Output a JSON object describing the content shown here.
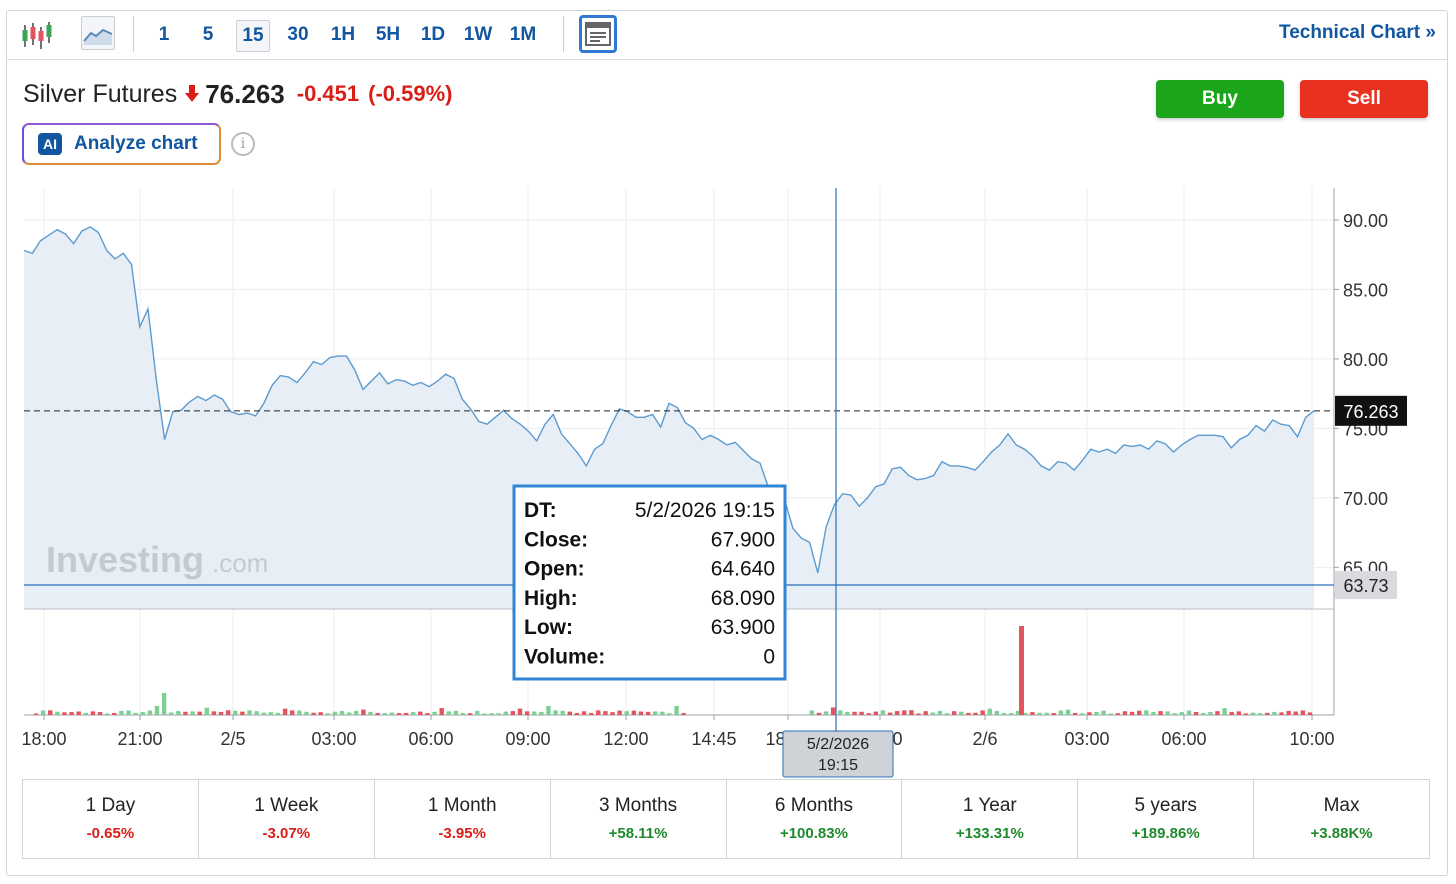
{
  "toolbar": {
    "icons": [
      "candlestick-icon",
      "area-chart-icon",
      "layout-icon"
    ],
    "timeframes": [
      "1",
      "5",
      "15",
      "30",
      "1H",
      "5H",
      "1D",
      "1W",
      "1M"
    ],
    "active_timeframe": "15",
    "technical_chart_label": "Technical Chart",
    "technical_chart_chevron": "»"
  },
  "header": {
    "instrument_name": "Silver Futures",
    "last_price": "76.263",
    "change": "-0.451",
    "change_percent": "(-0.59%)",
    "direction": "down"
  },
  "actions": {
    "ai_badge": "AI",
    "analyze_label": "Analyze chart",
    "info_glyph": "i",
    "buy_label": "Buy",
    "sell_label": "Sell"
  },
  "colors": {
    "accent": "#1256a0",
    "line": "#5b9bd0",
    "area_fill": "#e8eef6",
    "negative": "#d91e18",
    "positive": "#1f8a2b",
    "buy": "#1aa51a",
    "sell": "#e8321f",
    "volume_up": "#7fcf95",
    "volume_down": "#e3555e"
  },
  "chart_data": {
    "type": "area",
    "ylim": [
      62,
      92.3
    ],
    "y_ticks": [
      65,
      70,
      75,
      80,
      85,
      90
    ],
    "y_tick_labels": [
      "65.00",
      "70.00",
      "75.00",
      "80.00",
      "85.00",
      "90.00"
    ],
    "x_tick_labels": [
      "18:00",
      "21:00",
      "2/5",
      "03:00",
      "06:00",
      "09:00",
      "12:00",
      "14:45",
      "18:00",
      "21:00",
      "2/6",
      "03:00",
      "06:00",
      "10:00"
    ],
    "last_price_label": "76.263",
    "crosshair_price_label": "63.73",
    "crosshair_time_label": [
      "5/2/2026",
      "19:15"
    ],
    "watermark": "Investing",
    "watermark_suffix": ".com",
    "grid": true,
    "series": [
      {
        "values": [
          87.8,
          87.6,
          88.5,
          88.9,
          89.3,
          89.0,
          88.3,
          89.2,
          89.5,
          89.1,
          87.8,
          87.2,
          87.6,
          86.8,
          82.3,
          83.6,
          78.5,
          74.2,
          76.2,
          76.3,
          76.9,
          77.3,
          77.0,
          77.4,
          77.1,
          76.2,
          76.0,
          76.1,
          75.9,
          76.8,
          78.1,
          78.8,
          78.7,
          78.3,
          79.0,
          79.8,
          79.6,
          80.1,
          80.2,
          80.2,
          79.2,
          77.8,
          78.4,
          79.0,
          78.2,
          78.5,
          78.4,
          78.1,
          78.3,
          78.0,
          78.4,
          78.9,
          78.6,
          77.1,
          76.4,
          75.5,
          75.3,
          75.8,
          76.3,
          75.7,
          75.3,
          74.8,
          74.1,
          75.3,
          76.0,
          74.6,
          73.9,
          73.2,
          72.3,
          73.5,
          73.9,
          75.2,
          76.4,
          76.2,
          75.8,
          75.8,
          76.0,
          75.1,
          76.8,
          76.5,
          75.4,
          75.0,
          74.2,
          74.5,
          74.2,
          73.8,
          74.0,
          73.4,
          72.8,
          72.5,
          70.8,
          70.2,
          69.8,
          67.8,
          67.1,
          66.8,
          64.6,
          67.9,
          69.5,
          70.3,
          70.2,
          69.4,
          70.0,
          70.8,
          71.0,
          72.1,
          72.2,
          71.6,
          71.3,
          71.4,
          71.6,
          72.6,
          72.3,
          72.3,
          72.2,
          72.0,
          72.6,
          73.3,
          73.8,
          74.6,
          73.8,
          73.5,
          73.0,
          72.3,
          72.0,
          72.6,
          72.5,
          72.0,
          72.7,
          73.5,
          73.3,
          73.5,
          73.2,
          73.8,
          73.7,
          73.8,
          73.5,
          74.1,
          73.9,
          73.3,
          73.8,
          74.2,
          74.5,
          74.5,
          74.5,
          74.4,
          73.6,
          74.2,
          74.5,
          75.2,
          74.8,
          75.6,
          75.3,
          75.2,
          74.4,
          75.8,
          76.263
        ]
      }
    ],
    "volume_count": 180,
    "volume_spike_value": 1,
    "tooltip": {
      "rows": [
        {
          "label": "DT:",
          "value": "5/2/2026 19:15"
        },
        {
          "label": "Close:",
          "value": "67.900"
        },
        {
          "label": "Open:",
          "value": "64.640"
        },
        {
          "label": "High:",
          "value": "68.090"
        },
        {
          "label": "Low:",
          "value": "63.900"
        },
        {
          "label": "Volume:",
          "value": "0"
        }
      ]
    }
  },
  "performance": [
    {
      "label": "1 Day",
      "value": "-0.65%",
      "sign": "neg"
    },
    {
      "label": "1 Week",
      "value": "-3.07%",
      "sign": "neg"
    },
    {
      "label": "1 Month",
      "value": "-3.95%",
      "sign": "neg"
    },
    {
      "label": "3 Months",
      "value": "+58.11%",
      "sign": "pos"
    },
    {
      "label": "6 Months",
      "value": "+100.83%",
      "sign": "pos"
    },
    {
      "label": "1 Year",
      "value": "+133.31%",
      "sign": "pos"
    },
    {
      "label": "5 years",
      "value": "+189.86%",
      "sign": "pos"
    },
    {
      "label": "Max",
      "value": "+3.88K%",
      "sign": "pos"
    }
  ]
}
